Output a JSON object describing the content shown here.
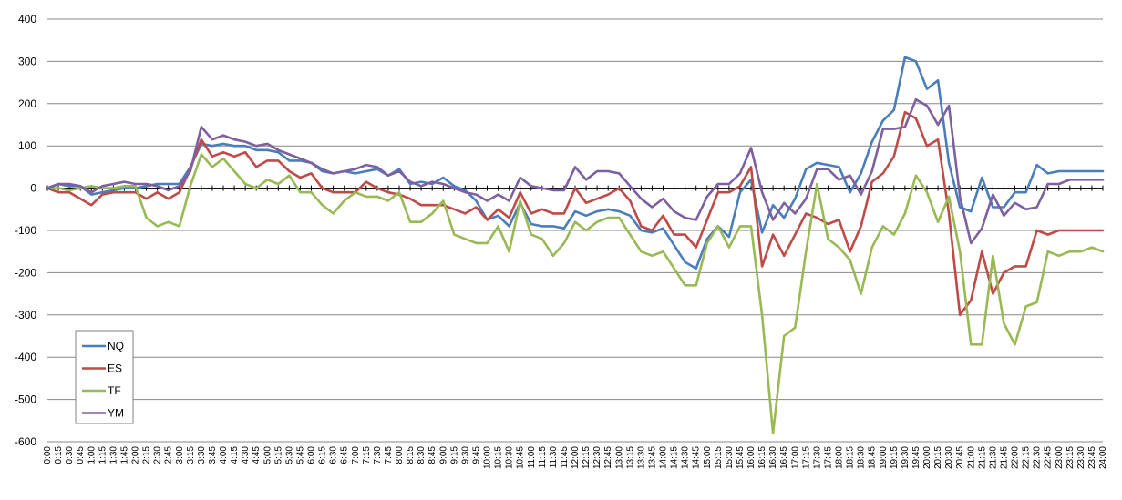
{
  "chart_data": {
    "type": "line",
    "title": "",
    "xlabel": "",
    "ylabel": "",
    "ylim": [
      -600,
      400
    ],
    "y_ticks": [
      400,
      300,
      200,
      100,
      0,
      -100,
      -200,
      -300,
      -400,
      -500,
      -600
    ],
    "grid": "horizontal",
    "legend_position": "bottom-left",
    "categories": [
      "0:00",
      "0:15",
      "0:30",
      "0:45",
      "1:00",
      "1:15",
      "1:30",
      "1:45",
      "2:00",
      "2:15",
      "2:30",
      "2:45",
      "3:00",
      "3:15",
      "3:30",
      "3:45",
      "4:00",
      "4:15",
      "4:30",
      "4:45",
      "5:00",
      "5:15",
      "5:30",
      "5:45",
      "6:00",
      "6:15",
      "6:30",
      "6:45",
      "7:00",
      "7:15",
      "7:30",
      "7:45",
      "8:00",
      "8:15",
      "8:30",
      "8:45",
      "9:00",
      "9:15",
      "9:30",
      "9:45",
      "10:00",
      "10:15",
      "10:30",
      "10:45",
      "11:00",
      "11:15",
      "11:30",
      "11:45",
      "12:00",
      "12:15",
      "12:30",
      "12:45",
      "13:00",
      "13:15",
      "13:30",
      "13:45",
      "14:00",
      "14:15",
      "14:30",
      "14:45",
      "15:00",
      "15:15",
      "15:30",
      "15:45",
      "16:00",
      "16:15",
      "16:30",
      "16:45",
      "17:00",
      "17:15",
      "17:30",
      "17:45",
      "18:00",
      "18:15",
      "18:30",
      "18:45",
      "19:00",
      "19:15",
      "19:30",
      "19:45",
      "20:00",
      "20:15",
      "20:30",
      "20:45",
      "21:00",
      "21:15",
      "21:30",
      "21:45",
      "22:00",
      "22:15",
      "22:30",
      "22:45",
      "23:00",
      "23:15",
      "23:30",
      "23:45",
      "24:00"
    ],
    "series": [
      {
        "name": "NQ",
        "color": "#4a7ebb",
        "values": [
          0,
          10,
          5,
          5,
          -15,
          -10,
          -5,
          0,
          0,
          5,
          10,
          10,
          10,
          50,
          105,
          100,
          105,
          100,
          100,
          90,
          90,
          85,
          65,
          65,
          60,
          40,
          35,
          40,
          35,
          40,
          45,
          30,
          45,
          10,
          15,
          10,
          25,
          5,
          -5,
          -30,
          -75,
          -65,
          -90,
          -35,
          -85,
          -90,
          -90,
          -95,
          -55,
          -65,
          -55,
          -50,
          -55,
          -65,
          -100,
          -105,
          -95,
          -135,
          -175,
          -190,
          -120,
          -90,
          -115,
          -10,
          20,
          -105,
          -40,
          -70,
          -25,
          45,
          60,
          55,
          50,
          -10,
          35,
          110,
          160,
          185,
          310,
          300,
          235,
          255,
          60,
          -45,
          -55,
          25,
          -45,
          -45,
          -10,
          -10,
          55,
          35,
          40,
          40,
          40,
          40,
          40
        ]
      },
      {
        "name": "ES",
        "color": "#be4b48",
        "values": [
          0,
          -10,
          -10,
          -25,
          -40,
          -15,
          -10,
          -10,
          -10,
          -25,
          -10,
          -25,
          -10,
          45,
          115,
          75,
          85,
          75,
          85,
          50,
          65,
          65,
          40,
          25,
          35,
          0,
          -10,
          -10,
          -10,
          15,
          0,
          -10,
          -15,
          -25,
          -40,
          -40,
          -40,
          -50,
          -60,
          -45,
          -75,
          -50,
          -70,
          -10,
          -60,
          -50,
          -60,
          -60,
          0,
          -35,
          -25,
          -15,
          0,
          -30,
          -90,
          -100,
          -65,
          -110,
          -110,
          -140,
          -75,
          -10,
          -10,
          5,
          50,
          -185,
          -110,
          -160,
          -110,
          -60,
          -70,
          -85,
          -75,
          -150,
          -90,
          15,
          35,
          75,
          180,
          165,
          100,
          115,
          -60,
          -300,
          -265,
          -150,
          -250,
          -200,
          -185,
          -185,
          -100,
          -110,
          -100,
          -100,
          -100,
          -100,
          -100
        ]
      },
      {
        "name": "TF",
        "color": "#98b954",
        "values": [
          0,
          0,
          -5,
          0,
          5,
          0,
          0,
          5,
          5,
          -70,
          -90,
          -80,
          -90,
          5,
          80,
          50,
          70,
          40,
          10,
          0,
          20,
          10,
          30,
          -10,
          -10,
          -40,
          -60,
          -30,
          -10,
          -20,
          -20,
          -30,
          -10,
          -80,
          -80,
          -60,
          -30,
          -110,
          -120,
          -130,
          -130,
          -90,
          -150,
          -30,
          -110,
          -120,
          -160,
          -130,
          -80,
          -100,
          -80,
          -70,
          -70,
          -110,
          -150,
          -160,
          -150,
          -190,
          -230,
          -230,
          -130,
          -90,
          -140,
          -90,
          -90,
          -300,
          -580,
          -350,
          -330,
          -150,
          10,
          -120,
          -140,
          -170,
          -250,
          -140,
          -90,
          -110,
          -60,
          30,
          -10,
          -80,
          -20,
          -150,
          -370,
          -370,
          -160,
          -320,
          -370,
          -280,
          -270,
          -150,
          -160,
          -150,
          -150,
          -140,
          -150
        ]
      },
      {
        "name": "YM",
        "color": "#7d60a0",
        "values": [
          0,
          10,
          10,
          5,
          -10,
          5,
          10,
          15,
          10,
          10,
          5,
          -5,
          5,
          40,
          145,
          115,
          125,
          115,
          110,
          100,
          105,
          90,
          80,
          70,
          60,
          45,
          35,
          40,
          45,
          55,
          50,
          30,
          40,
          15,
          5,
          15,
          10,
          0,
          -10,
          -15,
          -30,
          -15,
          -30,
          25,
          5,
          0,
          -5,
          -5,
          50,
          20,
          40,
          40,
          35,
          5,
          -25,
          -45,
          -25,
          -55,
          -70,
          -75,
          -20,
          10,
          10,
          35,
          95,
          -10,
          -75,
          -35,
          -60,
          -25,
          45,
          45,
          20,
          30,
          -15,
          40,
          140,
          140,
          145,
          210,
          195,
          150,
          195,
          -20,
          -130,
          -95,
          -15,
          -65,
          -35,
          -50,
          -45,
          10,
          10,
          20,
          20,
          20,
          20
        ]
      }
    ]
  }
}
